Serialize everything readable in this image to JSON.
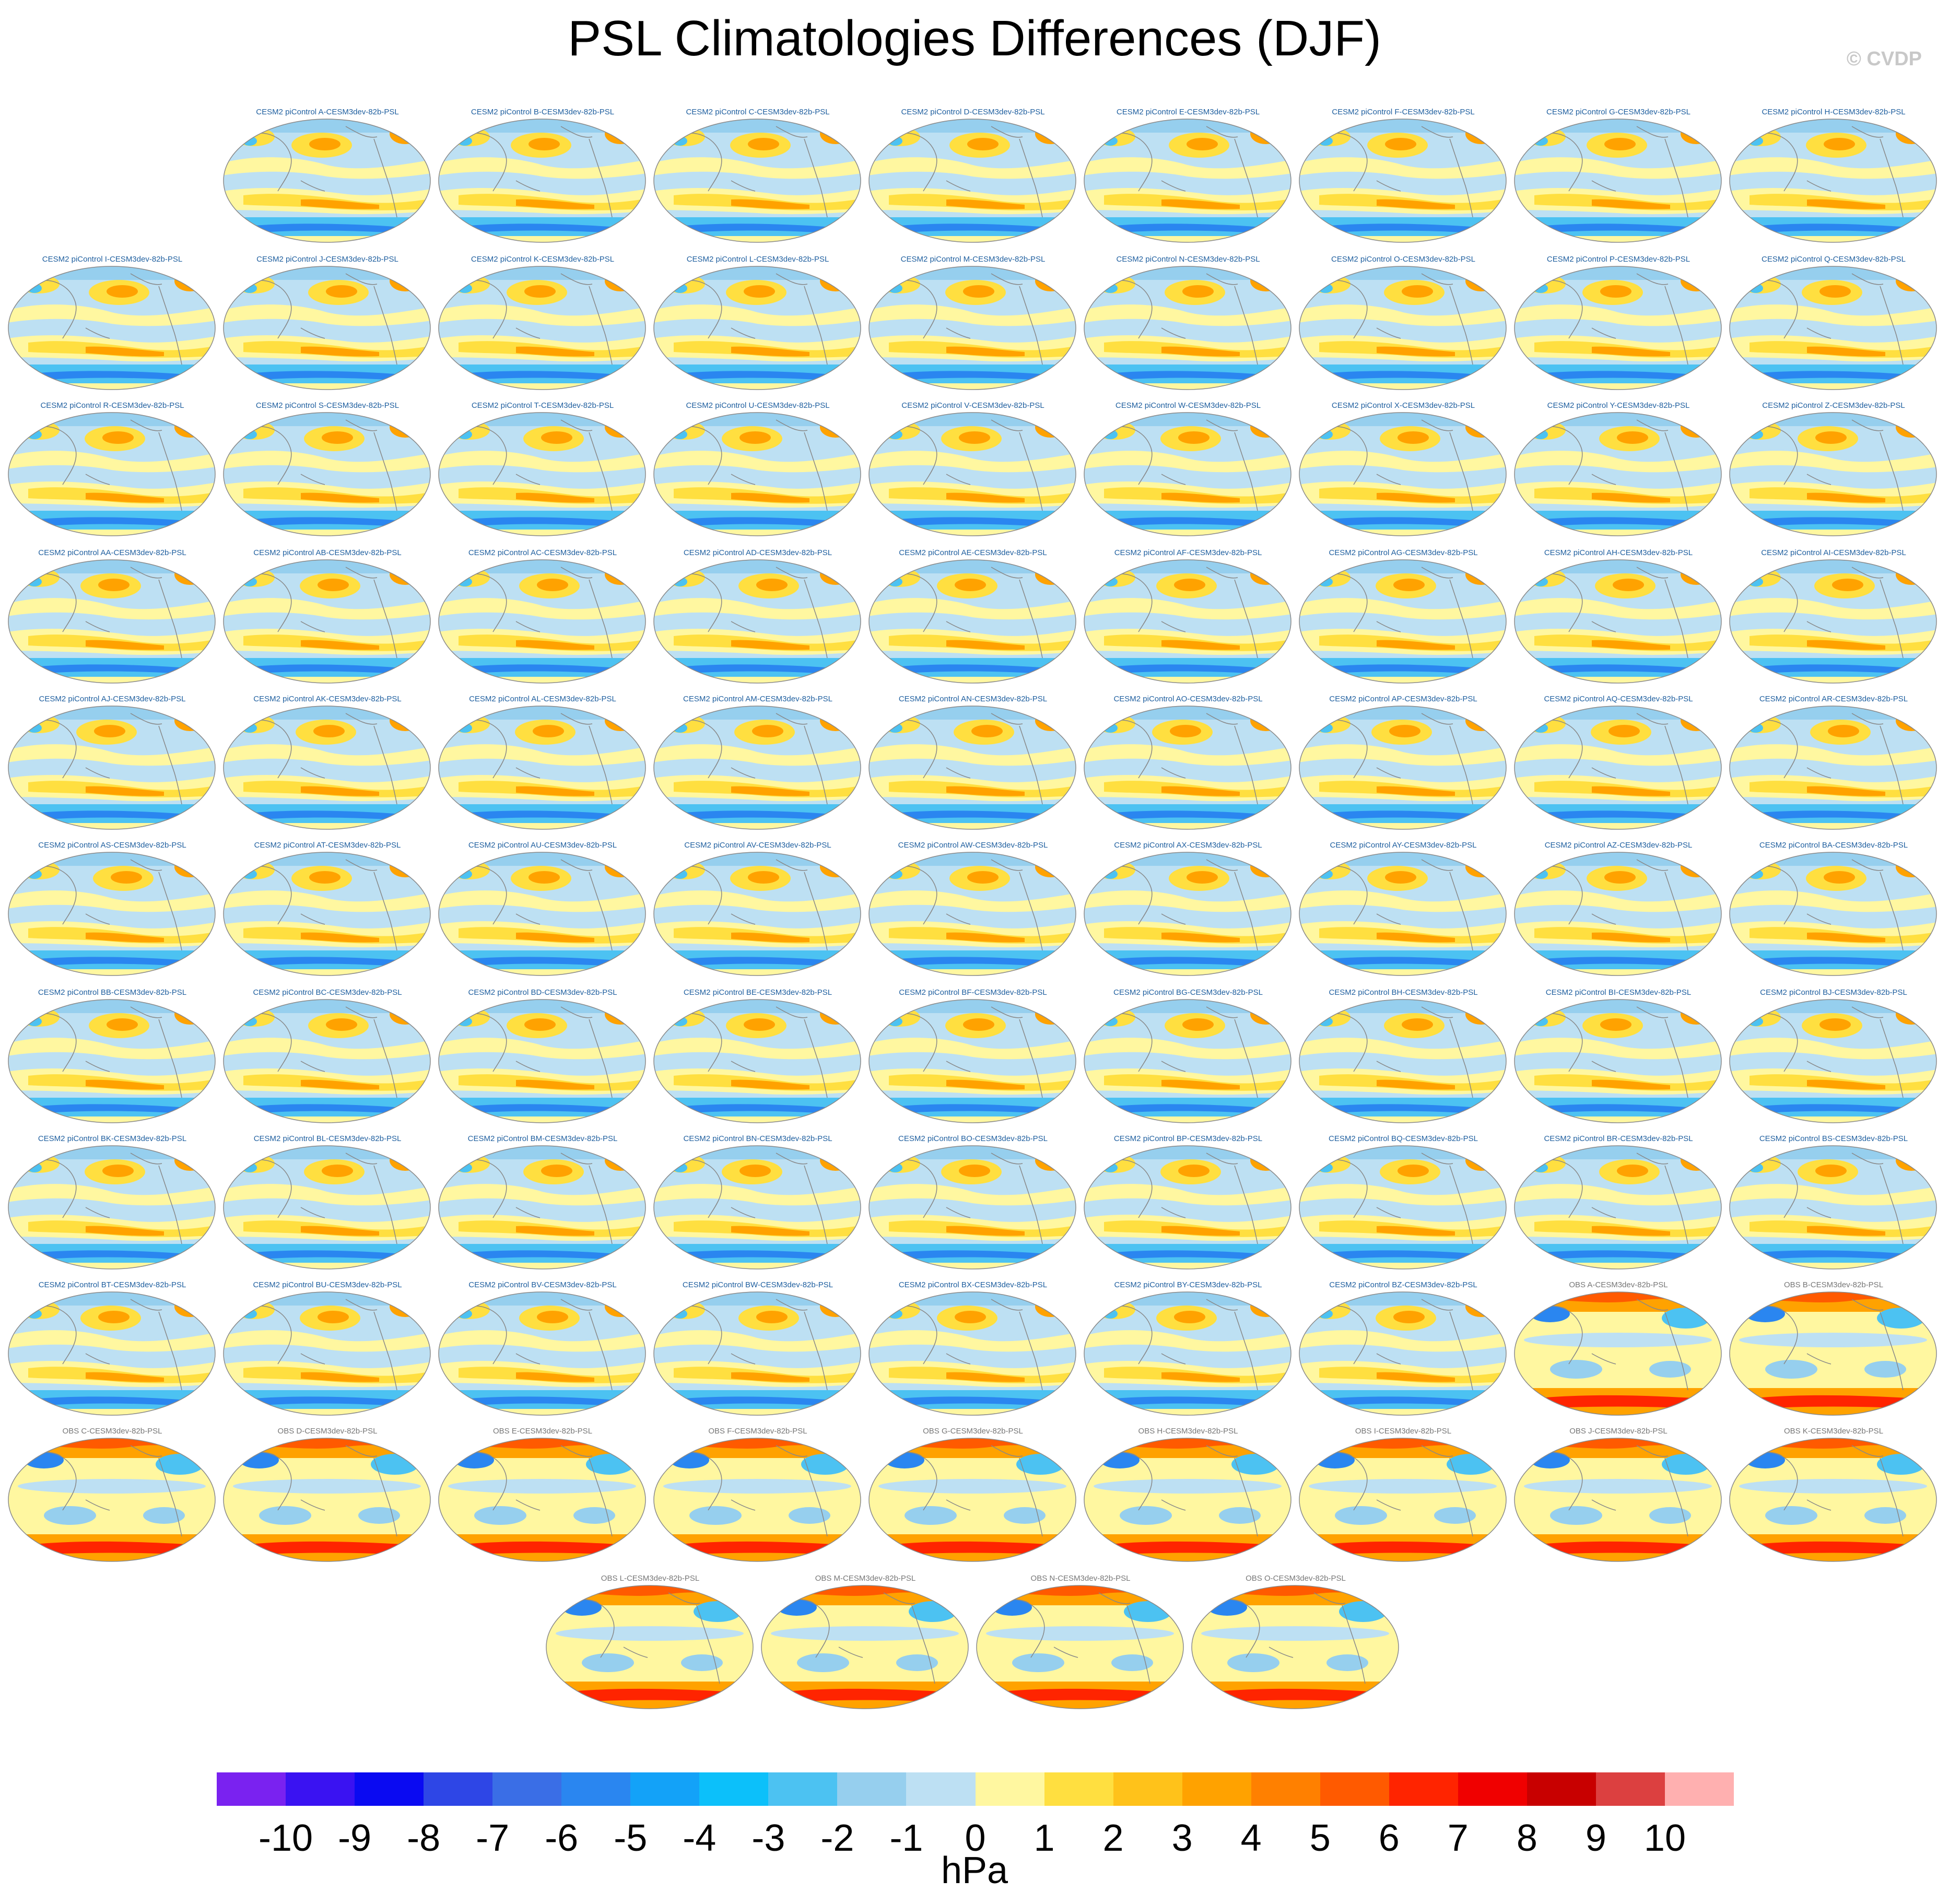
{
  "title": "PSL Climatologies Differences (DJF)",
  "credit": "© CVDP",
  "chart_data": {
    "type": "map_grid",
    "variable": "PSL",
    "season": "DJF",
    "projection": "Robinson (Pacific-centered)",
    "panels": [
      {
        "label": "CESM2 piControl A-CESM3dev-82b-PSL",
        "kind": "model"
      },
      {
        "label": "CESM2 piControl B-CESM3dev-82b-PSL",
        "kind": "model"
      },
      {
        "label": "CESM2 piControl C-CESM3dev-82b-PSL",
        "kind": "model"
      },
      {
        "label": "CESM2 piControl D-CESM3dev-82b-PSL",
        "kind": "model"
      },
      {
        "label": "CESM2 piControl E-CESM3dev-82b-PSL",
        "kind": "model"
      },
      {
        "label": "CESM2 piControl F-CESM3dev-82b-PSL",
        "kind": "model"
      },
      {
        "label": "CESM2 piControl G-CESM3dev-82b-PSL",
        "kind": "model"
      },
      {
        "label": "CESM2 piControl H-CESM3dev-82b-PSL",
        "kind": "model"
      },
      {
        "label": "CESM2 piControl I-CESM3dev-82b-PSL",
        "kind": "model"
      },
      {
        "label": "CESM2 piControl J-CESM3dev-82b-PSL",
        "kind": "model"
      },
      {
        "label": "CESM2 piControl K-CESM3dev-82b-PSL",
        "kind": "model"
      },
      {
        "label": "CESM2 piControl L-CESM3dev-82b-PSL",
        "kind": "model"
      },
      {
        "label": "CESM2 piControl M-CESM3dev-82b-PSL",
        "kind": "model"
      },
      {
        "label": "CESM2 piControl N-CESM3dev-82b-PSL",
        "kind": "model"
      },
      {
        "label": "CESM2 piControl O-CESM3dev-82b-PSL",
        "kind": "model"
      },
      {
        "label": "CESM2 piControl P-CESM3dev-82b-PSL",
        "kind": "model"
      },
      {
        "label": "CESM2 piControl Q-CESM3dev-82b-PSL",
        "kind": "model"
      },
      {
        "label": "CESM2 piControl R-CESM3dev-82b-PSL",
        "kind": "model"
      },
      {
        "label": "CESM2 piControl S-CESM3dev-82b-PSL",
        "kind": "model"
      },
      {
        "label": "CESM2 piControl T-CESM3dev-82b-PSL",
        "kind": "model"
      },
      {
        "label": "CESM2 piControl U-CESM3dev-82b-PSL",
        "kind": "model"
      },
      {
        "label": "CESM2 piControl V-CESM3dev-82b-PSL",
        "kind": "model"
      },
      {
        "label": "CESM2 piControl W-CESM3dev-82b-PSL",
        "kind": "model"
      },
      {
        "label": "CESM2 piControl X-CESM3dev-82b-PSL",
        "kind": "model"
      },
      {
        "label": "CESM2 piControl Y-CESM3dev-82b-PSL",
        "kind": "model"
      },
      {
        "label": "CESM2 piControl Z-CESM3dev-82b-PSL",
        "kind": "model"
      },
      {
        "label": "CESM2 piControl AA-CESM3dev-82b-PSL",
        "kind": "model"
      },
      {
        "label": "CESM2 piControl AB-CESM3dev-82b-PSL",
        "kind": "model"
      },
      {
        "label": "CESM2 piControl AC-CESM3dev-82b-PSL",
        "kind": "model"
      },
      {
        "label": "CESM2 piControl AD-CESM3dev-82b-PSL",
        "kind": "model"
      },
      {
        "label": "CESM2 piControl AE-CESM3dev-82b-PSL",
        "kind": "model"
      },
      {
        "label": "CESM2 piControl AF-CESM3dev-82b-PSL",
        "kind": "model"
      },
      {
        "label": "CESM2 piControl AG-CESM3dev-82b-PSL",
        "kind": "model"
      },
      {
        "label": "CESM2 piControl AH-CESM3dev-82b-PSL",
        "kind": "model"
      },
      {
        "label": "CESM2 piControl AI-CESM3dev-82b-PSL",
        "kind": "model"
      },
      {
        "label": "CESM2 piControl AJ-CESM3dev-82b-PSL",
        "kind": "model"
      },
      {
        "label": "CESM2 piControl AK-CESM3dev-82b-PSL",
        "kind": "model"
      },
      {
        "label": "CESM2 piControl AL-CESM3dev-82b-PSL",
        "kind": "model"
      },
      {
        "label": "CESM2 piControl AM-CESM3dev-82b-PSL",
        "kind": "model"
      },
      {
        "label": "CESM2 piControl AN-CESM3dev-82b-PSL",
        "kind": "model"
      },
      {
        "label": "CESM2 piControl AO-CESM3dev-82b-PSL",
        "kind": "model"
      },
      {
        "label": "CESM2 piControl AP-CESM3dev-82b-PSL",
        "kind": "model"
      },
      {
        "label": "CESM2 piControl AQ-CESM3dev-82b-PSL",
        "kind": "model"
      },
      {
        "label": "CESM2 piControl AR-CESM3dev-82b-PSL",
        "kind": "model"
      },
      {
        "label": "CESM2 piControl AS-CESM3dev-82b-PSL",
        "kind": "model"
      },
      {
        "label": "CESM2 piControl AT-CESM3dev-82b-PSL",
        "kind": "model"
      },
      {
        "label": "CESM2 piControl AU-CESM3dev-82b-PSL",
        "kind": "model"
      },
      {
        "label": "CESM2 piControl AV-CESM3dev-82b-PSL",
        "kind": "model"
      },
      {
        "label": "CESM2 piControl AW-CESM3dev-82b-PSL",
        "kind": "model"
      },
      {
        "label": "CESM2 piControl AX-CESM3dev-82b-PSL",
        "kind": "model"
      },
      {
        "label": "CESM2 piControl AY-CESM3dev-82b-PSL",
        "kind": "model"
      },
      {
        "label": "CESM2 piControl AZ-CESM3dev-82b-PSL",
        "kind": "model"
      },
      {
        "label": "CESM2 piControl BA-CESM3dev-82b-PSL",
        "kind": "model"
      },
      {
        "label": "CESM2 piControl BB-CESM3dev-82b-PSL",
        "kind": "model"
      },
      {
        "label": "CESM2 piControl BC-CESM3dev-82b-PSL",
        "kind": "model"
      },
      {
        "label": "CESM2 piControl BD-CESM3dev-82b-PSL",
        "kind": "model"
      },
      {
        "label": "CESM2 piControl BE-CESM3dev-82b-PSL",
        "kind": "model"
      },
      {
        "label": "CESM2 piControl BF-CESM3dev-82b-PSL",
        "kind": "model"
      },
      {
        "label": "CESM2 piControl BG-CESM3dev-82b-PSL",
        "kind": "model"
      },
      {
        "label": "CESM2 piControl BH-CESM3dev-82b-PSL",
        "kind": "model"
      },
      {
        "label": "CESM2 piControl BI-CESM3dev-82b-PSL",
        "kind": "model"
      },
      {
        "label": "CESM2 piControl BJ-CESM3dev-82b-PSL",
        "kind": "model"
      },
      {
        "label": "CESM2 piControl BK-CESM3dev-82b-PSL",
        "kind": "model"
      },
      {
        "label": "CESM2 piControl BL-CESM3dev-82b-PSL",
        "kind": "model"
      },
      {
        "label": "CESM2 piControl BM-CESM3dev-82b-PSL",
        "kind": "model"
      },
      {
        "label": "CESM2 piControl BN-CESM3dev-82b-PSL",
        "kind": "model"
      },
      {
        "label": "CESM2 piControl BO-CESM3dev-82b-PSL",
        "kind": "model"
      },
      {
        "label": "CESM2 piControl BP-CESM3dev-82b-PSL",
        "kind": "model"
      },
      {
        "label": "CESM2 piControl BQ-CESM3dev-82b-PSL",
        "kind": "model"
      },
      {
        "label": "CESM2 piControl BR-CESM3dev-82b-PSL",
        "kind": "model"
      },
      {
        "label": "CESM2 piControl BS-CESM3dev-82b-PSL",
        "kind": "model"
      },
      {
        "label": "CESM2 piControl BT-CESM3dev-82b-PSL",
        "kind": "model"
      },
      {
        "label": "CESM2 piControl BU-CESM3dev-82b-PSL",
        "kind": "model"
      },
      {
        "label": "CESM2 piControl BV-CESM3dev-82b-PSL",
        "kind": "model"
      },
      {
        "label": "CESM2 piControl BW-CESM3dev-82b-PSL",
        "kind": "model"
      },
      {
        "label": "CESM2 piControl BX-CESM3dev-82b-PSL",
        "kind": "model"
      },
      {
        "label": "CESM2 piControl BY-CESM3dev-82b-PSL",
        "kind": "model"
      },
      {
        "label": "CESM2 piControl BZ-CESM3dev-82b-PSL",
        "kind": "model"
      },
      {
        "label": "OBS A-CESM3dev-82b-PSL",
        "kind": "obs"
      },
      {
        "label": "OBS B-CESM3dev-82b-PSL",
        "kind": "obs"
      },
      {
        "label": "OBS C-CESM3dev-82b-PSL",
        "kind": "obs"
      },
      {
        "label": "OBS D-CESM3dev-82b-PSL",
        "kind": "obs"
      },
      {
        "label": "OBS E-CESM3dev-82b-PSL",
        "kind": "obs"
      },
      {
        "label": "OBS F-CESM3dev-82b-PSL",
        "kind": "obs"
      },
      {
        "label": "OBS G-CESM3dev-82b-PSL",
        "kind": "obs"
      },
      {
        "label": "OBS H-CESM3dev-82b-PSL",
        "kind": "obs"
      },
      {
        "label": "OBS I-CESM3dev-82b-PSL",
        "kind": "obs"
      },
      {
        "label": "OBS J-CESM3dev-82b-PSL",
        "kind": "obs"
      },
      {
        "label": "OBS K-CESM3dev-82b-PSL",
        "kind": "obs"
      },
      {
        "label": "OBS L-CESM3dev-82b-PSL",
        "kind": "obs"
      },
      {
        "label": "OBS M-CESM3dev-82b-PSL",
        "kind": "obs"
      },
      {
        "label": "OBS N-CESM3dev-82b-PSL",
        "kind": "obs"
      },
      {
        "label": "OBS O-CESM3dev-82b-PSL",
        "kind": "obs"
      }
    ],
    "colorbar": {
      "units": "hPa",
      "ticks": [
        "-10",
        "-9",
        "-8",
        "-7",
        "-6",
        "-5",
        "-4",
        "-3",
        "-2",
        "-1",
        "0",
        "1",
        "2",
        "3",
        "4",
        "5",
        "6",
        "7",
        "8",
        "9",
        "10"
      ],
      "colors": [
        "#7a22f0",
        "#3a12f2",
        "#0a0af2",
        "#2e46e6",
        "#3a6ee6",
        "#2a86f0",
        "#13a2f8",
        "#0cc0fa",
        "#4cc2f2",
        "#96cfee",
        "#bde0f3",
        "#fff7a0",
        "#ffdf40",
        "#ffc21a",
        "#ffa200",
        "#ff8000",
        "#ff5a00",
        "#ff2400",
        "#f00000",
        "#c80000",
        "#dc4040",
        "#ffb0b0"
      ]
    }
  }
}
